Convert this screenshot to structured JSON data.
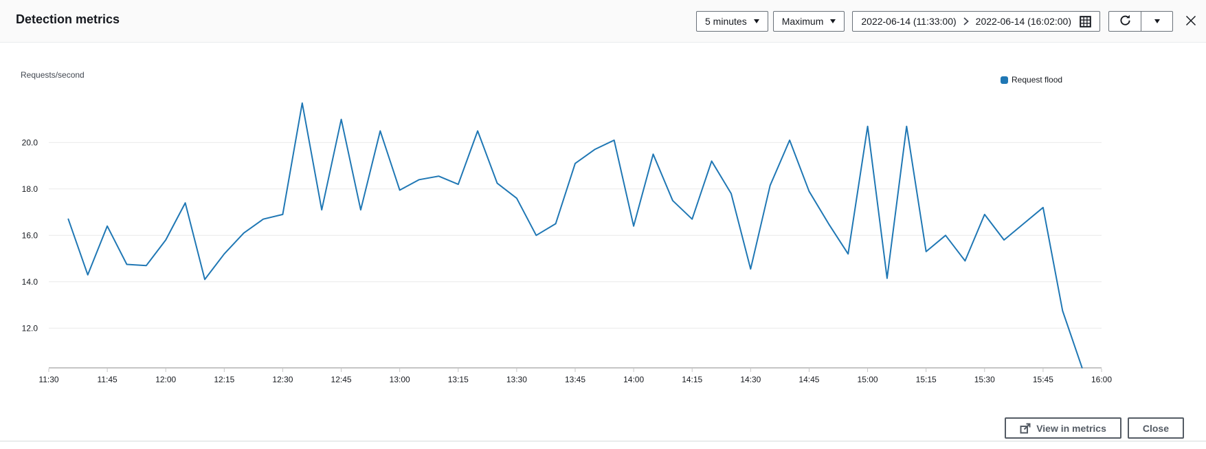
{
  "header": {
    "title": "Detection metrics",
    "period_select": {
      "value": "5 minutes"
    },
    "statistic_select": {
      "value": "Maximum"
    },
    "date_range": {
      "start": "2022-06-14 (11:33:00)",
      "end": "2022-06-14 (16:02:00)"
    }
  },
  "chart": {
    "y_axis_title": "Requests/second",
    "legend": [
      {
        "label": "Request flood",
        "color": "#1f77b4"
      }
    ]
  },
  "chart_data": {
    "type": "line",
    "title": "",
    "xlabel": "",
    "ylabel": "Requests/second",
    "legend_position": "top-right",
    "grid": "horizontal",
    "ylim": [
      10.3,
      22.4
    ],
    "y_ticks": [
      12.0,
      14.0,
      16.0,
      18.0,
      20.0
    ],
    "x_ticks": [
      "11:30",
      "11:45",
      "12:00",
      "12:15",
      "12:30",
      "12:45",
      "13:00",
      "13:15",
      "13:30",
      "13:45",
      "14:00",
      "14:15",
      "14:30",
      "14:45",
      "15:00",
      "15:15",
      "15:30",
      "15:45",
      "16:00"
    ],
    "x": [
      "11:35",
      "11:40",
      "11:45",
      "11:50",
      "11:55",
      "12:00",
      "12:05",
      "12:10",
      "12:15",
      "12:20",
      "12:25",
      "12:30",
      "12:35",
      "12:40",
      "12:45",
      "12:50",
      "12:55",
      "13:00",
      "13:05",
      "13:10",
      "13:15",
      "13:20",
      "13:25",
      "13:30",
      "13:35",
      "13:40",
      "13:45",
      "13:50",
      "13:55",
      "14:00",
      "14:05",
      "14:10",
      "14:15",
      "14:20",
      "14:25",
      "14:30",
      "14:35",
      "14:40",
      "14:45",
      "14:50",
      "14:55",
      "15:00",
      "15:05",
      "15:10",
      "15:15",
      "15:20",
      "15:25",
      "15:30",
      "15:35",
      "15:40",
      "15:45",
      "15:50",
      "15:55"
    ],
    "series": [
      {
        "name": "Request flood",
        "color": "#1f77b4",
        "values": [
          16.7,
          14.3,
          16.4,
          14.75,
          14.7,
          15.8,
          17.4,
          14.1,
          15.2,
          16.1,
          16.7,
          16.9,
          21.7,
          17.1,
          21.0,
          17.1,
          20.5,
          17.95,
          18.4,
          18.55,
          18.2,
          20.5,
          18.25,
          17.6,
          16.0,
          16.5,
          19.1,
          19.7,
          20.1,
          16.4,
          19.5,
          17.5,
          16.7,
          19.2,
          17.8,
          14.55,
          18.15,
          20.1,
          17.9,
          16.5,
          15.2,
          20.7,
          14.15,
          20.7,
          15.3,
          16.0,
          14.9,
          16.9,
          15.8,
          16.5,
          17.2,
          12.75,
          10.3
        ]
      }
    ]
  },
  "footer": {
    "view_in_metrics_label": "View in metrics",
    "close_label": "Close"
  },
  "colors": {
    "line": "#1f77b4",
    "gridline": "#e9e9e9",
    "axis": "#c5c5c5",
    "text_dark": "#16191f",
    "button_border": "#545b64"
  }
}
